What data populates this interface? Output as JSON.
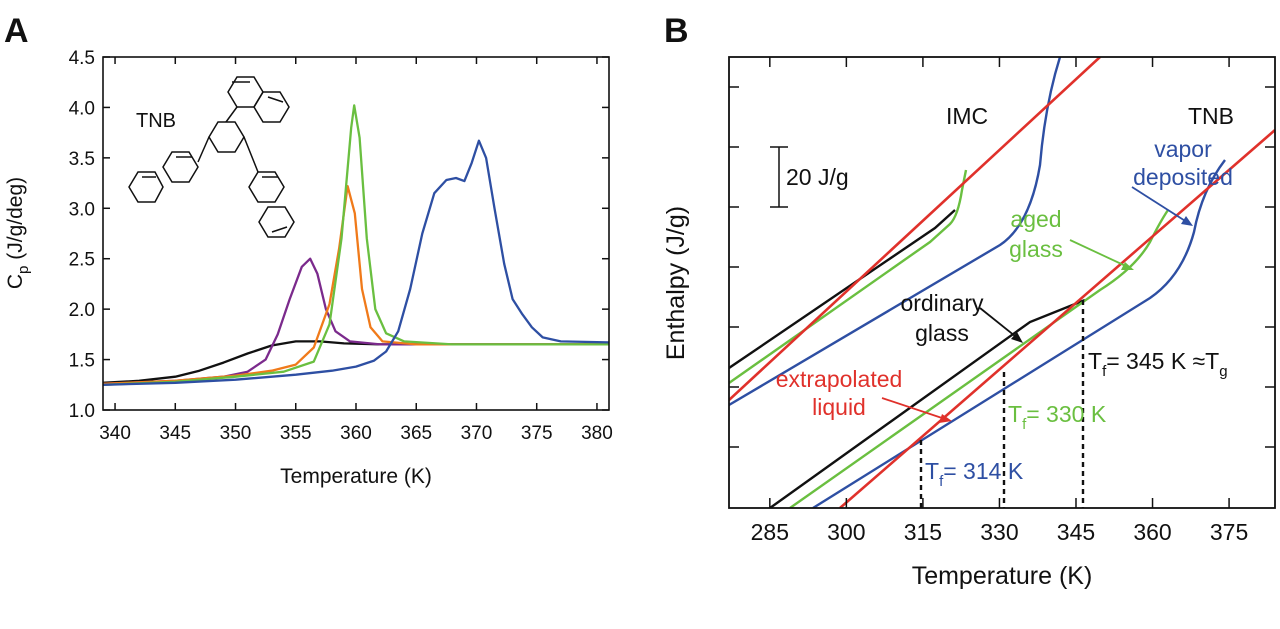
{
  "panels": {
    "a_letter": "A",
    "b_letter": "B"
  },
  "chart_data": [
    {
      "type": "line",
      "panel": "A",
      "xlabel": "Temperature (K)",
      "ylabel_main": "C",
      "ylabel_sub": "p",
      "ylabel_rest": " (J/g/deg)",
      "xlim": [
        339,
        381
      ],
      "ylim": [
        1.0,
        4.5
      ],
      "xticks": [
        340,
        345,
        350,
        355,
        360,
        365,
        370,
        375,
        380
      ],
      "yticks": [
        "1.0",
        "1.5",
        "2.0",
        "2.5",
        "3.0",
        "3.5",
        "4.0",
        "4.5"
      ],
      "molecule_label": "TNB",
      "series": [
        {
          "name": "ordinary",
          "color": "#111111",
          "points": [
            [
              339,
              1.27
            ],
            [
              342,
              1.29
            ],
            [
              345,
              1.33
            ],
            [
              347,
              1.39
            ],
            [
              349,
              1.47
            ],
            [
              351,
              1.56
            ],
            [
              353,
              1.64
            ],
            [
              355,
              1.68
            ],
            [
              357,
              1.68
            ],
            [
              359,
              1.66
            ],
            [
              362,
              1.65
            ],
            [
              370,
              1.65
            ],
            [
              381,
              1.65
            ]
          ]
        },
        {
          "name": "purple",
          "color": "#7b2a8c",
          "points": [
            [
              339,
              1.26
            ],
            [
              345,
              1.29
            ],
            [
              349,
              1.33
            ],
            [
              351,
              1.38
            ],
            [
              352.5,
              1.5
            ],
            [
              353.5,
              1.75
            ],
            [
              354.5,
              2.1
            ],
            [
              355.5,
              2.42
            ],
            [
              356.2,
              2.5
            ],
            [
              356.8,
              2.35
            ],
            [
              357.5,
              2.0
            ],
            [
              358.3,
              1.78
            ],
            [
              359.5,
              1.68
            ],
            [
              362,
              1.65
            ],
            [
              381,
              1.65
            ]
          ]
        },
        {
          "name": "orange",
          "color": "#f07a1a",
          "points": [
            [
              339,
              1.26
            ],
            [
              345,
              1.29
            ],
            [
              350,
              1.34
            ],
            [
              353,
              1.39
            ],
            [
              355,
              1.45
            ],
            [
              356.5,
              1.62
            ],
            [
              357.8,
              2.05
            ],
            [
              358.6,
              2.6
            ],
            [
              359.3,
              3.22
            ],
            [
              359.9,
              2.95
            ],
            [
              360.5,
              2.2
            ],
            [
              361.2,
              1.82
            ],
            [
              362.2,
              1.68
            ],
            [
              365,
              1.65
            ],
            [
              381,
              1.65
            ]
          ]
        },
        {
          "name": "aged",
          "color": "#6abf40",
          "points": [
            [
              339,
              1.25
            ],
            [
              345,
              1.28
            ],
            [
              350,
              1.33
            ],
            [
              354,
              1.38
            ],
            [
              356.5,
              1.48
            ],
            [
              357.8,
              1.85
            ],
            [
              358.8,
              2.7
            ],
            [
              359.6,
              3.8
            ],
            [
              359.85,
              4.02
            ],
            [
              360.3,
              3.7
            ],
            [
              360.9,
              2.7
            ],
            [
              361.6,
              2.0
            ],
            [
              362.5,
              1.76
            ],
            [
              364,
              1.68
            ],
            [
              368,
              1.65
            ],
            [
              381,
              1.65
            ]
          ]
        },
        {
          "name": "vapor",
          "color": "#2e4fa3",
          "points": [
            [
              339,
              1.25
            ],
            [
              345,
              1.27
            ],
            [
              350,
              1.3
            ],
            [
              355,
              1.35
            ],
            [
              358,
              1.39
            ],
            [
              360,
              1.43
            ],
            [
              361.5,
              1.49
            ],
            [
              362.5,
              1.58
            ],
            [
              363.5,
              1.78
            ],
            [
              364.5,
              2.2
            ],
            [
              365.5,
              2.75
            ],
            [
              366.5,
              3.15
            ],
            [
              367.5,
              3.28
            ],
            [
              368.3,
              3.3
            ],
            [
              369,
              3.27
            ],
            [
              369.6,
              3.45
            ],
            [
              370.2,
              3.67
            ],
            [
              370.8,
              3.5
            ],
            [
              371.5,
              3.0
            ],
            [
              372.3,
              2.45
            ],
            [
              373,
              2.1
            ],
            [
              373.8,
              1.95
            ],
            [
              374.6,
              1.82
            ],
            [
              375.5,
              1.72
            ],
            [
              377,
              1.68
            ],
            [
              381,
              1.67
            ]
          ]
        }
      ]
    },
    {
      "type": "line",
      "panel": "B",
      "xlabel": "Temperature (K)",
      "ylabel": "Enthalpy (J/g)",
      "xlim": [
        277,
        384
      ],
      "xticks": [
        285,
        300,
        315,
        330,
        345,
        360,
        375
      ],
      "scale_bar_label": "20 J/g",
      "annotations": {
        "imc": "IMC",
        "tnb": "TNB",
        "vapor_1": "vapor",
        "vapor_2": "deposited",
        "aged_1": "aged",
        "aged_2": "glass",
        "ordinary_1": "ordinary",
        "ordinary_2": "glass",
        "extrap_1": "extrapolated",
        "extrap_2": "liquid",
        "tf345_pre": "T",
        "tf345_sub": "f",
        "tf345_mid": "= 345 K ≈T",
        "tf345_sub2": "g",
        "tf330_pre": "T",
        "tf330_sub": "f",
        "tf330_post": "= 330 K",
        "tf314_pre": "T",
        "tf314_sub": "f",
        "tf314_post": "= 314 K"
      },
      "fictive_temperatures": [
        314,
        330,
        345
      ],
      "colors": {
        "ordinary": "#111111",
        "aged": "#6abf40",
        "vapor": "#2e4fa3",
        "liquid": "#e0312b"
      }
    }
  ]
}
